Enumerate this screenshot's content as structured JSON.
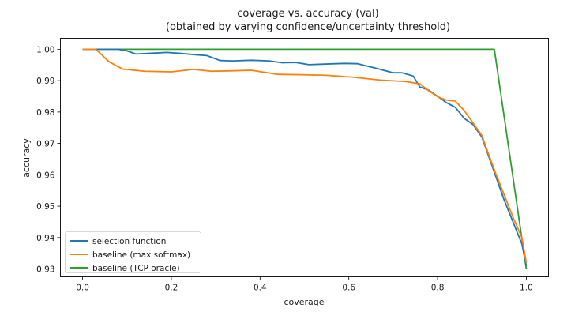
{
  "chart_data": {
    "type": "line",
    "title": "coverage vs. accuracy (val)",
    "subtitle": "(obtained by varying confidence/uncertainty threshold)",
    "xlabel": "coverage",
    "ylabel": "accuracy",
    "xlim": [
      -0.05,
      1.05
    ],
    "ylim": [
      0.9275,
      1.0035
    ],
    "xticks": [
      0.0,
      0.2,
      0.4,
      0.6,
      0.8,
      1.0
    ],
    "xtick_labels": [
      "0.0",
      "0.2",
      "0.4",
      "0.6",
      "0.8",
      "1.0"
    ],
    "yticks": [
      0.93,
      0.94,
      0.95,
      0.96,
      0.97,
      0.98,
      0.99,
      1.0
    ],
    "ytick_labels": [
      "0.93",
      "0.94",
      "0.95",
      "0.96",
      "0.97",
      "0.98",
      "0.99",
      "1.00"
    ],
    "grid": false,
    "legend_position": "lower-left",
    "series": [
      {
        "name": "selection function",
        "color": "#1f77b4",
        "x": [
          0.0,
          0.08,
          0.1,
          0.12,
          0.15,
          0.19,
          0.22,
          0.26,
          0.28,
          0.31,
          0.34,
          0.38,
          0.42,
          0.45,
          0.48,
          0.51,
          0.55,
          0.59,
          0.62,
          0.66,
          0.7,
          0.72,
          0.745,
          0.76,
          0.78,
          0.8,
          0.82,
          0.84,
          0.86,
          0.88,
          0.9,
          0.91,
          0.93,
          0.95,
          0.97,
          0.99,
          1.0
        ],
        "y": [
          1.0,
          1.0,
          0.9995,
          0.9985,
          0.9987,
          0.999,
          0.9987,
          0.9982,
          0.998,
          0.9964,
          0.9963,
          0.9965,
          0.9963,
          0.9957,
          0.9958,
          0.9951,
          0.9953,
          0.9955,
          0.9954,
          0.994,
          0.9925,
          0.9925,
          0.9915,
          0.988,
          0.987,
          0.985,
          0.983,
          0.9815,
          0.978,
          0.976,
          0.972,
          0.968,
          0.96,
          0.952,
          0.945,
          0.938,
          0.931
        ]
      },
      {
        "name": "baseline (max softmax)",
        "color": "#ff7f0e",
        "x": [
          0.0,
          0.03,
          0.06,
          0.09,
          0.14,
          0.2,
          0.25,
          0.29,
          0.33,
          0.38,
          0.44,
          0.49,
          0.55,
          0.61,
          0.67,
          0.73,
          0.76,
          0.78,
          0.8,
          0.82,
          0.84,
          0.86,
          0.88,
          0.9,
          0.91,
          0.93,
          0.95,
          0.97,
          0.99,
          1.0
        ],
        "y": [
          1.0,
          1.0,
          0.996,
          0.9937,
          0.993,
          0.9928,
          0.9936,
          0.993,
          0.9931,
          0.9933,
          0.992,
          0.9919,
          0.9917,
          0.9911,
          0.9902,
          0.9897,
          0.989,
          0.9868,
          0.9849,
          0.9838,
          0.9835,
          0.9805,
          0.9765,
          0.9725,
          0.9685,
          0.9608,
          0.9537,
          0.9465,
          0.94,
          0.932
        ]
      },
      {
        "name": "baseline (TCP oracle)",
        "color": "#2ca02c",
        "x": [
          0.0,
          0.928,
          1.0
        ],
        "y": [
          1.0,
          1.0,
          0.93
        ]
      }
    ]
  }
}
